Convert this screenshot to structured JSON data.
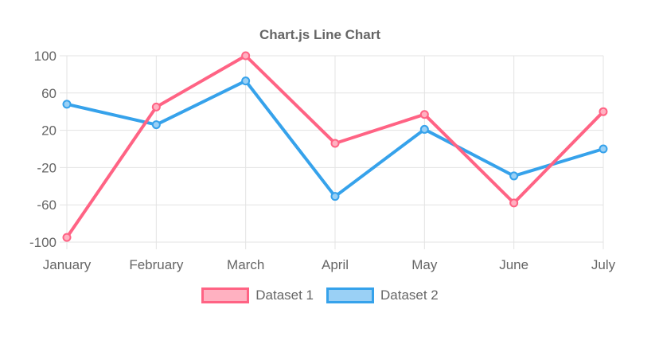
{
  "title": "Chart.js Line Chart",
  "chart_data": {
    "type": "line",
    "title": "Chart.js Line Chart",
    "categories": [
      "January",
      "February",
      "March",
      "April",
      "May",
      "June",
      "July"
    ],
    "series": [
      {
        "name": "Dataset 1",
        "color": "#FF6384",
        "fill": "#FFB1C1",
        "values": [
          -95,
          45,
          100,
          6,
          37,
          -58,
          40
        ]
      },
      {
        "name": "Dataset 2",
        "color": "#36A2EB",
        "fill": "#9AD0F5",
        "values": [
          48,
          26,
          73,
          -51,
          21,
          -29,
          0
        ]
      }
    ],
    "ylim": [
      -100,
      100
    ],
    "ytick_step": 40,
    "yticks": [
      100,
      60,
      20,
      -20,
      -60,
      -100
    ],
    "grid": true,
    "legend_position": "bottom",
    "text_color": "#666666",
    "grid_color": "#e3e3e3",
    "background_color": "#ffffff"
  }
}
